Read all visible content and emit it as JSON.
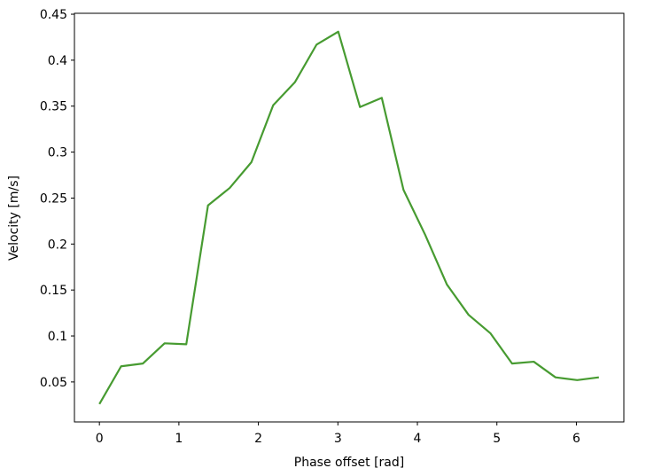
{
  "chart_data": {
    "type": "line",
    "xlabel": "Phase offset [rad]",
    "ylabel": "Velocity [m/s]",
    "x": [
      0,
      0.273,
      0.546,
      0.82,
      1.093,
      1.366,
      1.639,
      1.912,
      2.186,
      2.459,
      2.732,
      3.005,
      3.278,
      3.552,
      3.825,
      4.098,
      4.371,
      4.644,
      4.918,
      5.191,
      5.464,
      5.737,
      6.01,
      6.283
    ],
    "series": [
      {
        "color": "#479b31",
        "values": [
          0.026,
          0.067,
          0.07,
          0.092,
          0.091,
          0.242,
          0.261,
          0.289,
          0.351,
          0.376,
          0.417,
          0.431,
          0.349,
          0.359,
          0.259,
          0.21,
          0.156,
          0.123,
          0.103,
          0.07,
          0.072,
          0.055,
          0.052,
          0.055
        ]
      }
    ],
    "xlim": [
      -0.314,
      6.597
    ],
    "xticks": [
      0,
      1,
      2,
      3,
      4,
      5,
      6
    ],
    "ylim": [
      0.0065,
      0.451
    ],
    "yticks": [
      0.05,
      0.1,
      0.15,
      0.2,
      0.25,
      0.3,
      0.35,
      0.4,
      0.45
    ]
  }
}
